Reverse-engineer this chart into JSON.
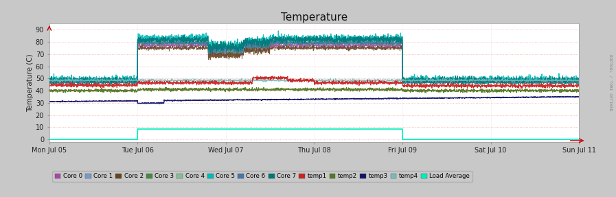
{
  "title": "Temperature",
  "ylabel": "Temperature (C)",
  "watermark": "RRDTOOL / TOBI OETIKER",
  "bg_color": "#c8c8c8",
  "plot_bg_color": "#ffffff",
  "xlim": [
    0,
    6
  ],
  "ylim": [
    -2,
    95
  ],
  "yticks": [
    0,
    10,
    20,
    30,
    40,
    50,
    60,
    70,
    80,
    90
  ],
  "xtick_labels": [
    "Mon Jul 05",
    "Tue Jul 06",
    "Wed Jul 07",
    "Thu Jul 08",
    "Fri Jul 09",
    "Sat Jul 10",
    "Sun Jul 11"
  ],
  "xtick_positions": [
    0,
    1,
    2,
    3,
    4,
    5,
    6
  ],
  "legend_items": [
    {
      "label": "Core 0",
      "color": "#aa44aa"
    },
    {
      "label": "Core 1",
      "color": "#7799cc"
    },
    {
      "label": "Core 2",
      "color": "#664422"
    },
    {
      "label": "Core 3",
      "color": "#448844"
    },
    {
      "label": "Core 4",
      "color": "#88bb99"
    },
    {
      "label": "Core 5",
      "color": "#00bbbb"
    },
    {
      "label": "Core 6",
      "color": "#4477aa"
    },
    {
      "label": "Core 7",
      "color": "#007777"
    },
    {
      "label": "temp1",
      "color": "#cc2222"
    },
    {
      "label": "temp2",
      "color": "#557722"
    },
    {
      "label": "temp3",
      "color": "#111166"
    },
    {
      "label": "temp4",
      "color": "#77bbbb"
    },
    {
      "label": "Load Average",
      "color": "#00eebb"
    }
  ]
}
